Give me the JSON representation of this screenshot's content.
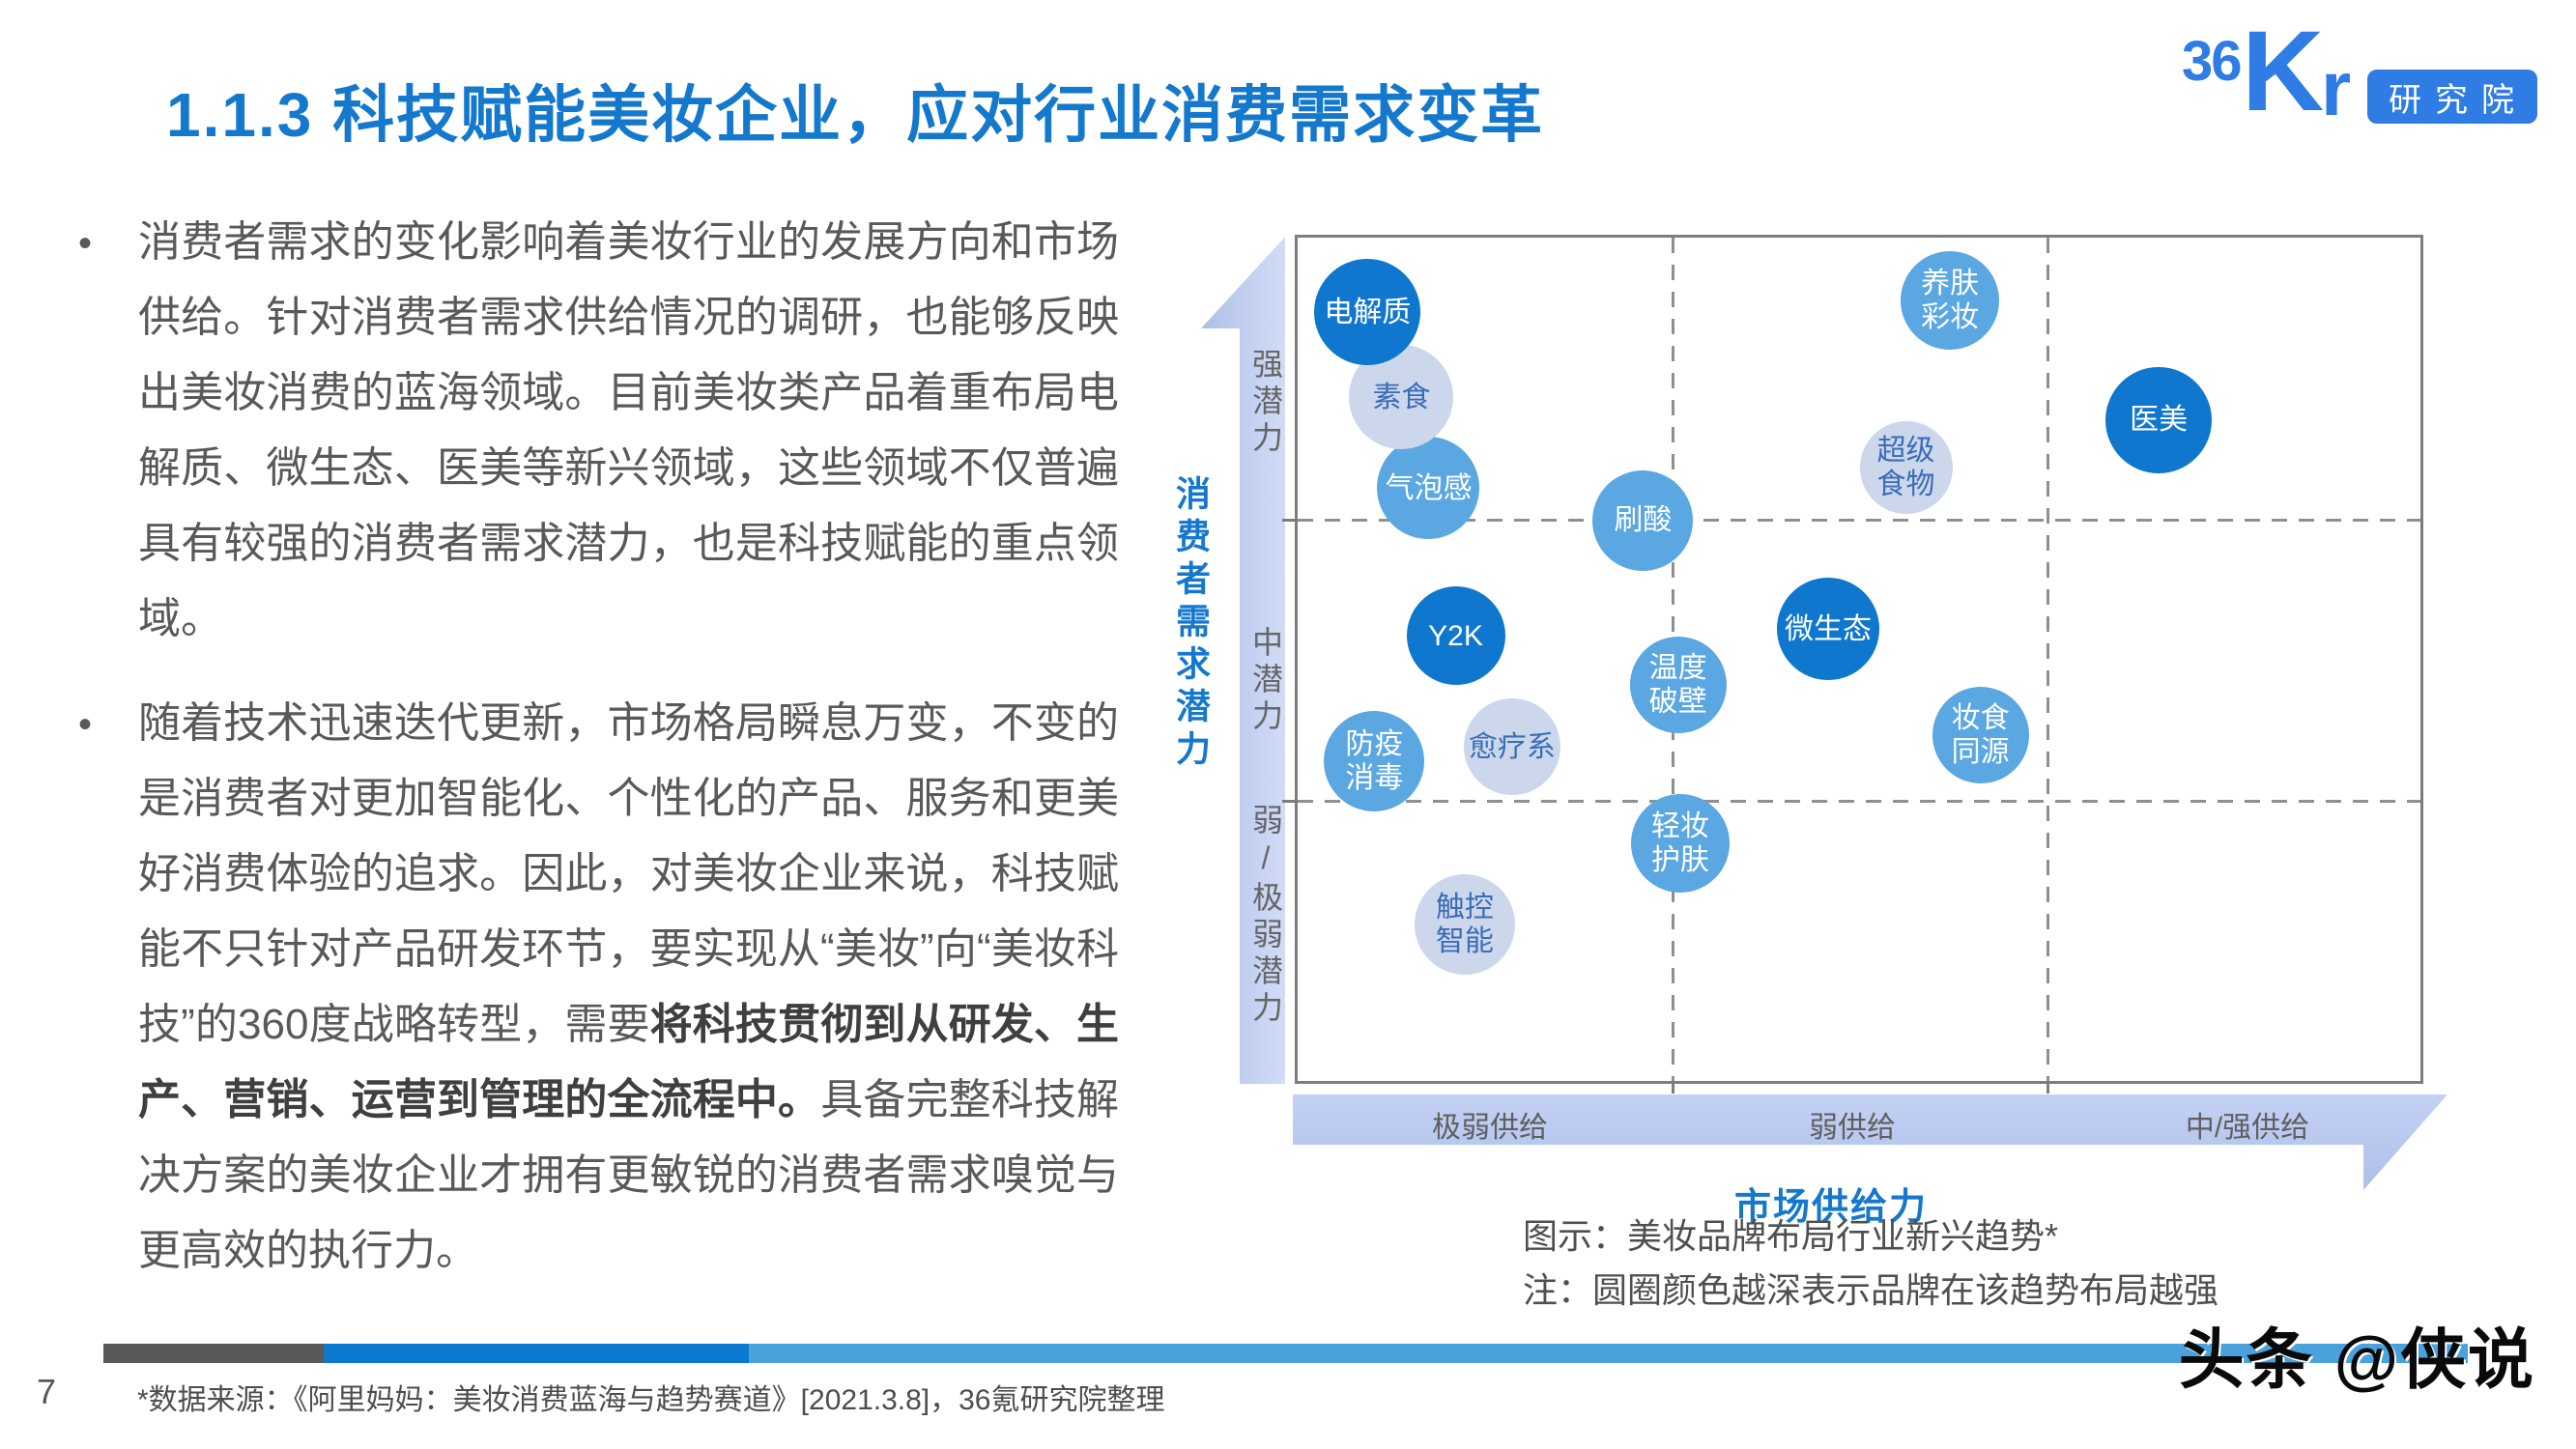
{
  "page": {
    "title": "1.1.3 科技赋能美妆企业，应对行业消费需求变革",
    "page_number": "7",
    "footer_source": "*数据来源：《阿里妈妈：美妆消费蓝海与趋势赛道》[2021.3.8]，36氪研究院整理",
    "watermark": "头条 @侠说"
  },
  "logo": {
    "num": "36",
    "k": "K",
    "r": "r",
    "badge": "研究院",
    "color": "#2e7ce4"
  },
  "bullets": [
    {
      "segments": [
        {
          "text": "消费者需求的变化影响着美妆行业的发展方向和市场供给。针对消费者需求供给情况的调研，也能够反映出美妆消费的蓝海领域。目前美妆类产品着重布局电解质、微生态、医美等新兴领域，这些领域不仅普遍具有较强的消费者需求潜力，也是科技赋能的重点领域。",
          "bold": false
        }
      ]
    },
    {
      "segments": [
        {
          "text": "随着技术迅速迭代更新，市场格局瞬息万变，不变的是消费者对更加智能化、个性化的产品、服务和更美好消费体验的追求。因此，对美妆企业来说，科技赋能不只针对产品研发环节，要实现从“美妆”向“美妆科技”的360度战略转型，需要",
          "bold": false
        },
        {
          "text": "将科技贯彻到从研发、生产、营销、运营到管理的全流程中。",
          "bold": true
        },
        {
          "text": "具备完整科技解决方案的美妆企业才拥有更敏锐的消费者需求嗅觉与更高效的执行力。",
          "bold": false
        }
      ]
    }
  ],
  "chart_data": {
    "type": "bubble-matrix",
    "title": "图示：美妆品牌布局行业新兴趋势*",
    "note": "注：圆圈颜色越深表示品牌在该趋势布局越强",
    "x_axis": {
      "label": "市场供给力",
      "bands": [
        "极弱供给",
        "弱供给",
        "中/强供给"
      ]
    },
    "y_axis": {
      "label": "消费者需求潜力",
      "bands": [
        "强潜力",
        "中潜力",
        "弱/极弱潜力"
      ]
    },
    "grid": {
      "columns": 3,
      "rows": 3,
      "line_style": "dashed"
    },
    "shade_colors": {
      "dark": "#0f77cd",
      "medium": "#5aa7e2",
      "light": "#ccd7eb",
      "light_text": "#3a6cb8"
    },
    "shade_meaning": "颜色越深表示品牌在该趋势布局越强",
    "bubbles": [
      {
        "label": "气泡感",
        "x": 0.116,
        "y": 0.295,
        "r": 53,
        "shade": "medium"
      },
      {
        "label": "素食",
        "x": 0.092,
        "y": 0.188,
        "r": 54,
        "shade": "light"
      },
      {
        "label": "电解质",
        "x": 0.062,
        "y": 0.088,
        "r": 55,
        "shade": "dark"
      },
      {
        "label": "刷酸",
        "x": 0.306,
        "y": 0.333,
        "r": 52,
        "shade": "medium"
      },
      {
        "label": "养肤\n彩妆",
        "x": 0.578,
        "y": 0.074,
        "r": 51,
        "shade": "medium"
      },
      {
        "label": "医美",
        "x": 0.763,
        "y": 0.215,
        "r": 55,
        "shade": "dark"
      },
      {
        "label": "超级\n食物",
        "x": 0.539,
        "y": 0.271,
        "r": 48,
        "shade": "light"
      },
      {
        "label": "Y2K",
        "x": 0.14,
        "y": 0.469,
        "r": 51,
        "shade": "dark"
      },
      {
        "label": "微生态",
        "x": 0.47,
        "y": 0.461,
        "r": 53,
        "shade": "dark"
      },
      {
        "label": "温度\n破壁",
        "x": 0.337,
        "y": 0.527,
        "r": 50,
        "shade": "medium"
      },
      {
        "label": "妆食\n同源",
        "x": 0.605,
        "y": 0.586,
        "r": 50,
        "shade": "medium"
      },
      {
        "label": "愈疗系",
        "x": 0.19,
        "y": 0.6,
        "r": 50,
        "shade": "light"
      },
      {
        "label": "防疫\n消毒",
        "x": 0.068,
        "y": 0.617,
        "r": 52,
        "shade": "medium"
      },
      {
        "label": "轻妆\n护肤",
        "x": 0.339,
        "y": 0.713,
        "r": 51,
        "shade": "medium"
      },
      {
        "label": "触控\n智能",
        "x": 0.148,
        "y": 0.809,
        "r": 52,
        "shade": "light"
      }
    ]
  }
}
